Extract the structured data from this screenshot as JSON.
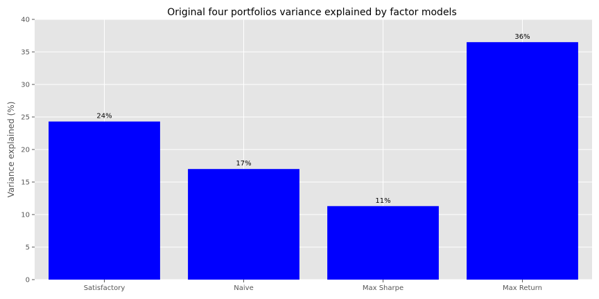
{
  "chart_data": {
    "type": "bar",
    "title": "Original four portfolios variance explained by factor models",
    "xlabel": "",
    "ylabel": "Variance explained (%)",
    "categories": [
      "Satisfactory",
      "Naive",
      "Max Sharpe",
      "Max Return"
    ],
    "values": [
      24.3,
      17.0,
      11.3,
      36.5
    ],
    "data_labels": [
      "24%",
      "17%",
      "11%",
      "36%"
    ],
    "ylim": [
      0,
      40
    ],
    "yticks": [
      0,
      5,
      10,
      15,
      20,
      25,
      30,
      35,
      40
    ],
    "grid": true,
    "legend": "none",
    "colors": {
      "bar": "#0000ff",
      "plot_background": "#e5e5e5",
      "grid": "#ffffff"
    }
  }
}
